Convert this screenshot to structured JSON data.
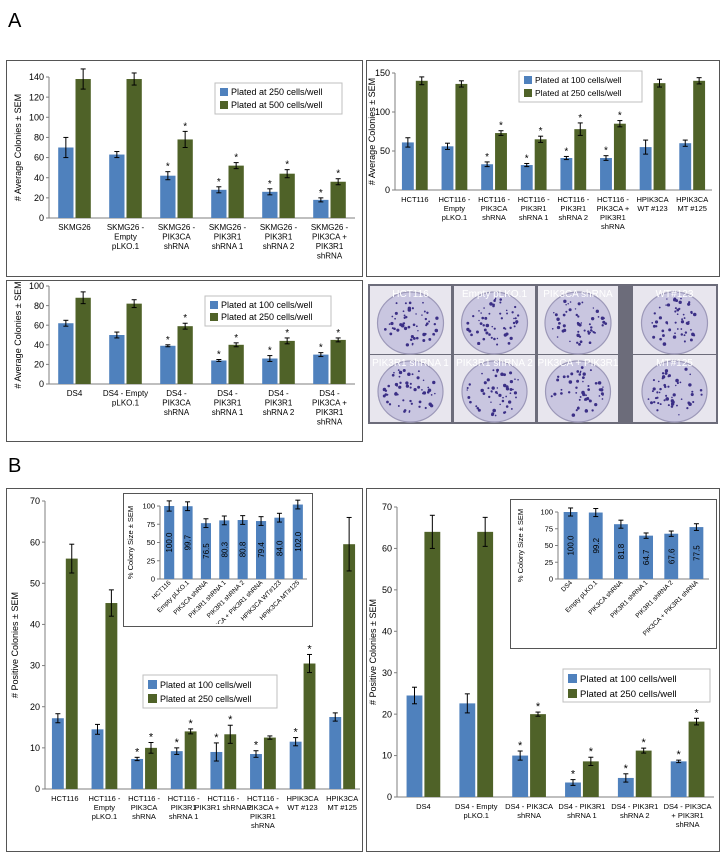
{
  "panel_labels": {
    "a": "A",
    "b": "B"
  },
  "photo_labels": [
    "HCT116",
    "Empty pLKO.1",
    "PIK3CA shRNA",
    "WT#123",
    "PIK3R1 shRNA 1",
    "PIK3R1 shRNA 2",
    "PIK3CA + PIK3R1",
    "MT#125"
  ],
  "colors": {
    "blue": "#4f81bd",
    "green": "#4f6228",
    "axis": "#7f7f7f",
    "grid": "#d9d9d9",
    "plate": "#c9c6e0",
    "plate_dark": "#3b2f86"
  },
  "chart_data": [
    {
      "id": "a1",
      "type": "bar",
      "ylabel": "# Average Colonies ± SEM",
      "ylim": [
        0,
        140
      ],
      "ytick_step": 20,
      "grid": false,
      "categories": [
        "SKMG26",
        "SKMG26 -\nEmpty\npLKO.1",
        "SKMG26 -\nPIK3CA\nshRNA",
        "SKMG26 -\nPIK3R1\nshRNA 1",
        "SKMG26 -\nPIK3R1\nshRNA 2",
        "SKMG26 -\nPIK3CA +\nPIK3R1\nshRNA"
      ],
      "series": [
        {
          "name": "Plated at 250 cells/well",
          "values": [
            70,
            63,
            42,
            28,
            26,
            18
          ],
          "errors": [
            10,
            3,
            4,
            3,
            3,
            2
          ],
          "stars": [
            false,
            false,
            true,
            true,
            true,
            true
          ]
        },
        {
          "name": "Plated at 500 cells/well",
          "values": [
            138,
            138,
            78,
            52,
            44,
            36
          ],
          "errors": [
            10,
            6,
            8,
            3,
            4,
            3
          ],
          "stars": [
            false,
            false,
            true,
            true,
            true,
            true
          ]
        }
      ],
      "legend": "top-right"
    },
    {
      "id": "a2",
      "type": "bar",
      "ylabel": "# Average Colonies ± SEM",
      "ylim": [
        0,
        150
      ],
      "ytick_step": 50,
      "grid": false,
      "categories": [
        "HCT116",
        "HCT116 -\nEmpty\npLKO.1",
        "HCT116 -\nPIK3CA\nshRNA",
        "HCT116 -\nPIK3R1\nshRNA 1",
        "HCT116 -\nPIK3R1\nshRNA 2",
        "HCT116 -\nPIK3CA +\nPIK3R1\nshRNA",
        "HPIK3CA\nWT #123",
        "HPIK3CA\nMT #125"
      ],
      "series": [
        {
          "name": "Plated at 100 cells/well",
          "values": [
            61,
            56,
            33,
            32,
            41,
            41,
            55,
            60
          ],
          "errors": [
            6,
            4,
            3,
            2,
            2,
            3,
            9,
            4
          ],
          "stars": [
            false,
            false,
            true,
            true,
            true,
            true,
            false,
            false
          ]
        },
        {
          "name": "Plated at 250 cells/well",
          "values": [
            140,
            136,
            73,
            65,
            78,
            85,
            137,
            140
          ],
          "errors": [
            5,
            4,
            3,
            4,
            8,
            4,
            5,
            4
          ],
          "stars": [
            false,
            false,
            true,
            true,
            true,
            true,
            false,
            false
          ]
        }
      ],
      "legend": "top-right"
    },
    {
      "id": "a3",
      "type": "bar",
      "ylabel": "# Average Colonies ± SEM",
      "ylim": [
        0,
        100
      ],
      "ytick_step": 20,
      "grid": false,
      "categories": [
        "DS4",
        "DS4 - Empty\npLKO.1",
        "DS4 -\nPIK3CA\nshRNA",
        "DS4 -\nPIK3R1\nshRNA 1",
        "DS4 -\nPIK3R1\nshRNA 2",
        "DS4 -\nPIK3CA +\nPIK3R1\nshRNA"
      ],
      "series": [
        {
          "name": "Plated at 100 cells/well",
          "values": [
            62,
            50,
            39,
            24,
            26,
            30
          ],
          "errors": [
            3,
            3,
            1,
            1,
            3,
            2
          ],
          "stars": [
            false,
            false,
            true,
            true,
            true,
            true
          ]
        },
        {
          "name": "Plated at 250 cells/well",
          "values": [
            88,
            82,
            59,
            40,
            44,
            45
          ],
          "errors": [
            6,
            4,
            3,
            2,
            3,
            2
          ],
          "stars": [
            false,
            false,
            true,
            true,
            true,
            true
          ]
        }
      ],
      "legend": "top-right"
    },
    {
      "id": "b1",
      "type": "bar",
      "ylabel": "# Positive Colonies ± SEM",
      "ylim": [
        0,
        70
      ],
      "ytick_step": 10,
      "grid": false,
      "categories": [
        "HCT116",
        "HCT116 -\nEmpty\npLKO.1",
        "HCT116 -\nPIK3CA\nshRNA",
        "HCT116 -\nPIK3R1\nshRNA 1",
        "HCT116 -\nPIK3R1 shRNA 2",
        "HCT116 -\nPIK3CA +\nPIK3R1\nshRNA",
        "HPIK3CA\nWT #123",
        "HPIK3CA\nMT #125"
      ],
      "series": [
        {
          "name": "Plated at 100 cells/well",
          "values": [
            17.2,
            14.5,
            7.3,
            9.2,
            9.0,
            8.5,
            11.5,
            17.5
          ],
          "errors": [
            1.1,
            1.2,
            0.4,
            0.8,
            2.2,
            0.8,
            1.0,
            1.0
          ],
          "stars": [
            false,
            false,
            true,
            true,
            true,
            true,
            true,
            false
          ]
        },
        {
          "name": "Plated at 250 cells/well",
          "values": [
            56,
            45.2,
            10.0,
            14.0,
            13.3,
            12.5,
            30.5,
            59.5
          ],
          "errors": [
            3.5,
            3.2,
            1.3,
            0.6,
            2.2,
            0.4,
            2.2,
            6.5
          ],
          "stars": [
            false,
            false,
            true,
            true,
            true,
            false,
            true,
            false
          ]
        }
      ],
      "legend": "middle-right"
    },
    {
      "id": "b1_inset",
      "type": "bar",
      "ylabel": "% Colony Size ± SEM",
      "ylim": [
        0,
        100
      ],
      "ytick_step": 25,
      "grid": false,
      "categories": [
        "HCT116",
        "Empty pLKO.1",
        "PIK3CA shRNA",
        "PIK3R1 shRNA 1",
        "PIK3R1 shRNA 2",
        "PIK3CA + PIK3R1 shRNA",
        "HPIK3CA WT#123",
        "HPIK3CA MT#125"
      ],
      "series": [
        {
          "name": "",
          "values": [
            100.0,
            99.7,
            76.5,
            80.3,
            80.8,
            79.4,
            84.0,
            102.0
          ],
          "errors": [
            7,
            6,
            6,
            6,
            6,
            6,
            6,
            6
          ],
          "data_labels": [
            "100.0",
            "99.7",
            "76.5",
            "80.3",
            "80.8",
            "79.4",
            "84.0",
            "102.0"
          ]
        }
      ]
    },
    {
      "id": "b2",
      "type": "bar",
      "ylabel": "# Positive Colonies ± SEM",
      "ylim": [
        0,
        70
      ],
      "ytick_step": 10,
      "grid": false,
      "categories": [
        "DS4",
        "DS4 - Empty\npLKO.1",
        "DS4 - PIK3CA\nshRNA",
        "DS4 - PIK3R1\nshRNA 1",
        "DS4 - PIK3R1\nshRNA 2",
        "DS4 - PIK3CA\n+ PIK3R1\nshRNA"
      ],
      "series": [
        {
          "name": "Plated at 100 cells/well",
          "values": [
            24.5,
            22.6,
            10.0,
            3.5,
            4.6,
            8.6
          ],
          "errors": [
            2.0,
            2.3,
            1.1,
            0.7,
            1.0,
            0.3
          ],
          "stars": [
            false,
            false,
            true,
            true,
            true,
            true
          ]
        },
        {
          "name": "Plated at 250 cells/well",
          "values": [
            64,
            64,
            20.0,
            8.6,
            11.2,
            18.2
          ],
          "errors": [
            4.0,
            3.5,
            0.5,
            1.0,
            0.6,
            0.8
          ],
          "stars": [
            false,
            false,
            true,
            true,
            true,
            true
          ]
        }
      ],
      "legend": "middle-right"
    },
    {
      "id": "b2_inset",
      "type": "bar",
      "ylabel": "% Colony Size ± SEM",
      "ylim": [
        0,
        100
      ],
      "ytick_step": 25,
      "grid": false,
      "categories": [
        "DS4",
        "Empty pLKO.1",
        "PIK3CA shRNA",
        "PIK3R1 shRNA 1",
        "PIK3R1 shRNA 2",
        "PIK3CA + PIK3R1 shRNA"
      ],
      "series": [
        {
          "name": "",
          "values": [
            100.0,
            99.2,
            81.8,
            64.7,
            67.6,
            77.5
          ],
          "errors": [
            6,
            6,
            6,
            4,
            4,
            5
          ],
          "data_labels": [
            "100.0",
            "99.2",
            "81.8",
            "64.7",
            "67.6",
            "77.5"
          ]
        }
      ]
    }
  ]
}
